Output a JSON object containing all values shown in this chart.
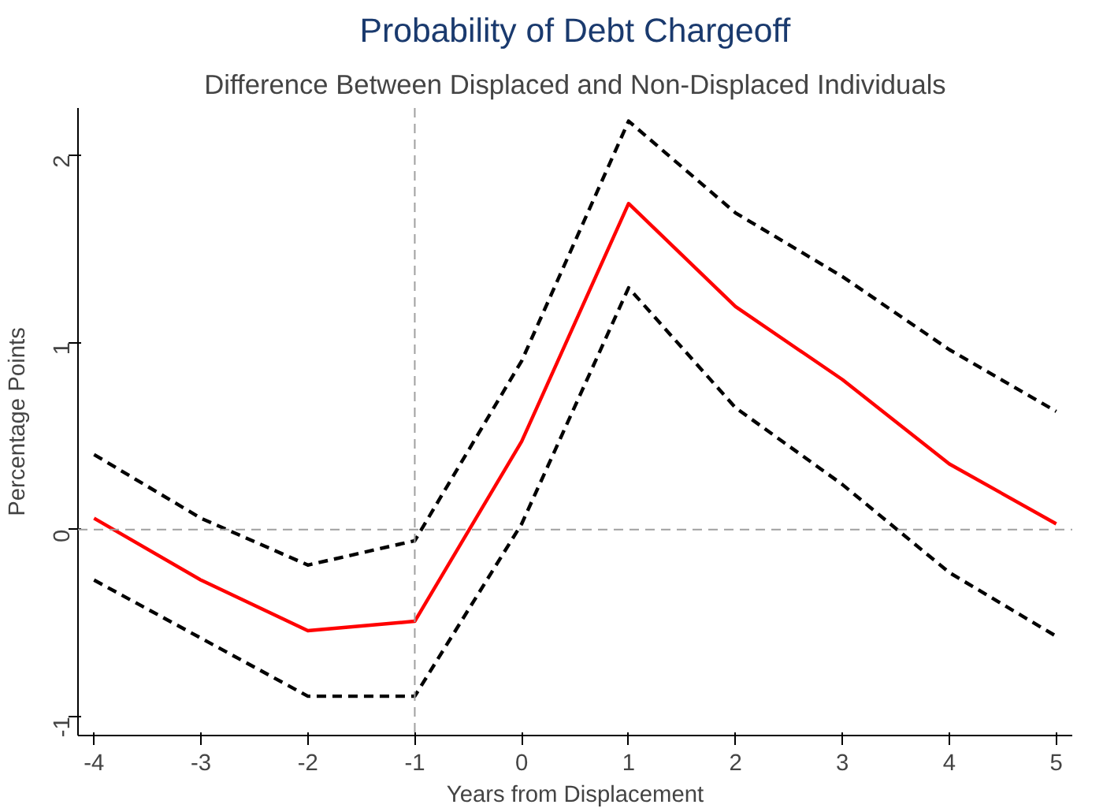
{
  "chart_data": {
    "type": "line",
    "title": "Probability of Debt Chargeoff",
    "subtitle": "Difference Between Displaced and Non-Displaced Individuals",
    "xlabel": "Years from Displacement",
    "ylabel": "Percentage Points",
    "x": [
      -4,
      -3,
      -2,
      -1,
      0,
      1,
      2,
      3,
      4,
      5
    ],
    "series": [
      {
        "color": "#ff0000",
        "line_style": "solid",
        "values": [
          0.06,
          -0.27,
          -0.54,
          -0.49,
          0.47,
          1.74,
          1.19,
          0.8,
          0.35,
          0.03
        ]
      },
      {
        "color": "#000000",
        "line_style": "dashed",
        "values": [
          0.4,
          0.06,
          -0.19,
          -0.06,
          0.9,
          2.18,
          1.69,
          1.35,
          0.96,
          0.63
        ]
      },
      {
        "color": "#000000",
        "line_style": "dashed",
        "values": [
          -0.27,
          -0.58,
          -0.89,
          -0.89,
          0.03,
          1.29,
          0.65,
          0.24,
          -0.23,
          -0.57
        ]
      }
    ],
    "xlim": [
      -4.15,
      5.15
    ],
    "ylim": [
      -1.1,
      2.25
    ],
    "xticks": [
      -4,
      -3,
      -2,
      -1,
      0,
      1,
      2,
      3,
      4,
      5
    ],
    "yticks": [
      -1,
      0,
      1,
      2
    ],
    "ref_lines": [
      {
        "axis": "x",
        "value": -1,
        "label": null,
        "color": "#a0a0a0",
        "line_style": "dashed"
      },
      {
        "axis": "y",
        "value": 0,
        "label": null,
        "color": "#a0a0a0",
        "line_style": "dashed"
      }
    ],
    "grid": false
  }
}
